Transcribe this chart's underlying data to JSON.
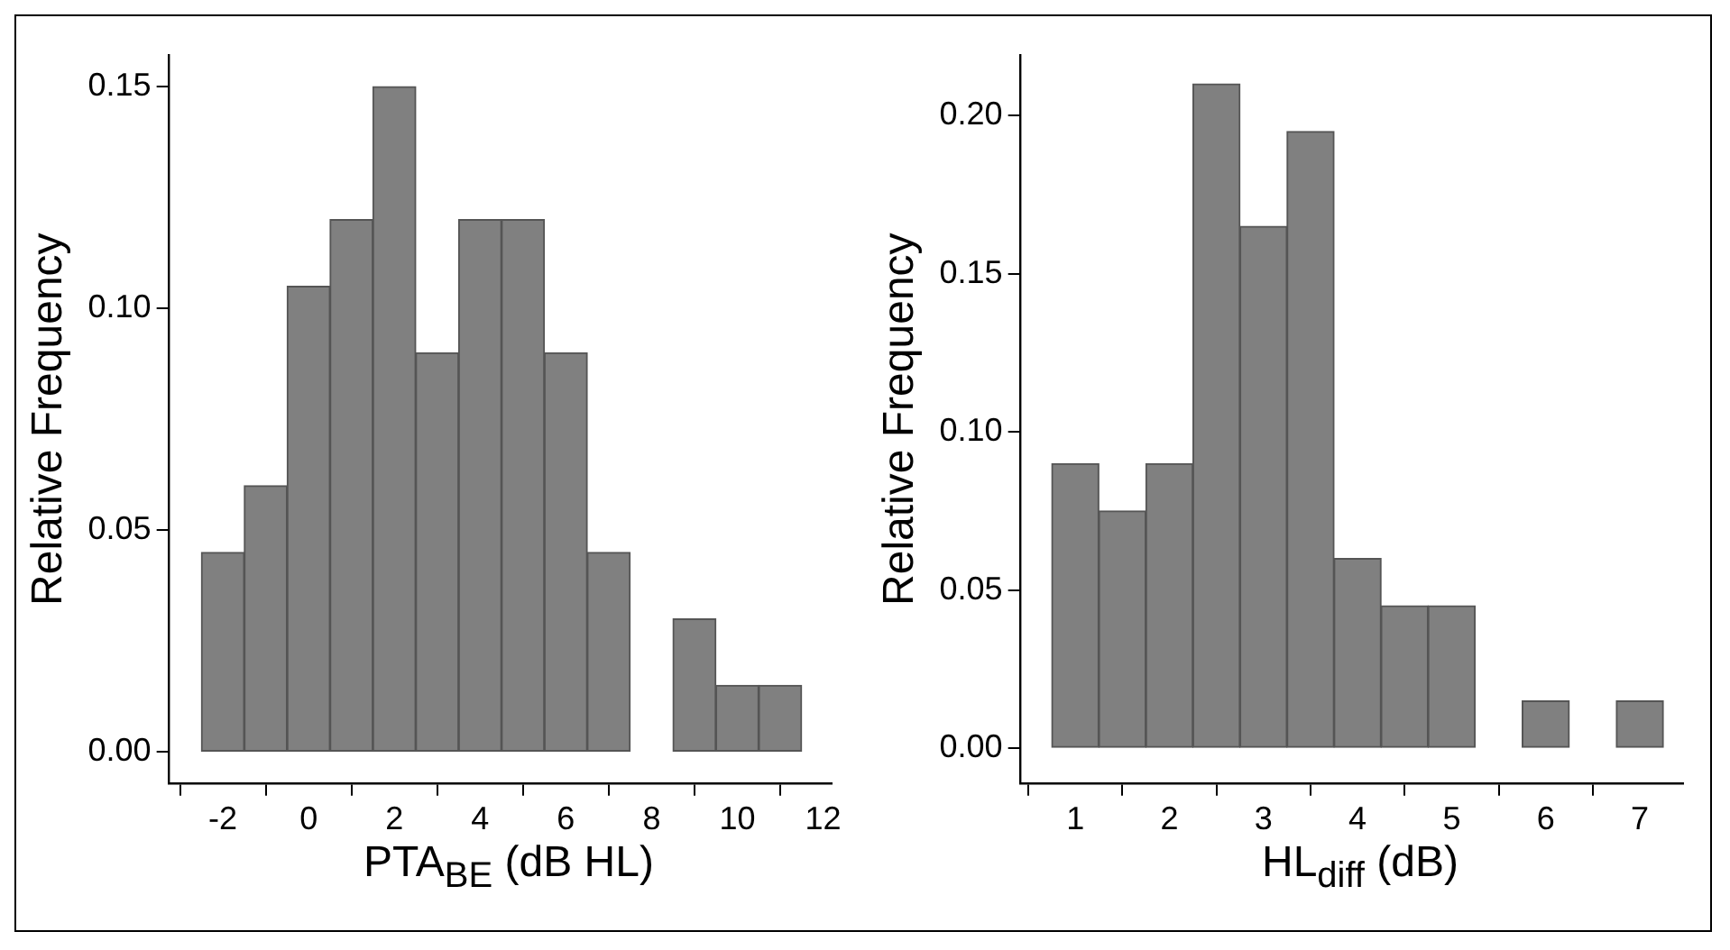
{
  "chart_data": [
    {
      "type": "histogram",
      "xlabel": "PTA$_{BE}$ (dB HL)",
      "ylabel": "Relative Frequency",
      "color": "#808080",
      "bins": [
        -2.5,
        -1.5,
        -0.5,
        0.5,
        1.5,
        2.5,
        3.5,
        4.5,
        5.5,
        6.5,
        7.5,
        8.5,
        9.5,
        10.5,
        11.5
      ],
      "values": [
        0.045,
        0.06,
        0.105,
        0.12,
        0.15,
        0.09,
        0.12,
        0.12,
        0.09,
        0.045,
        0,
        0.03,
        0.015,
        0.015
      ],
      "xlim": [
        -3.25,
        12.2
      ],
      "xticks": [
        -2,
        0,
        2,
        4,
        6,
        8,
        10,
        12
      ],
      "ylim": [
        -0.007,
        0.157
      ],
      "yticks": [
        {
          "value": 0,
          "label": "0.00"
        },
        {
          "value": 0.05,
          "label": "0.05"
        },
        {
          "value": 0.1,
          "label": "0.10"
        },
        {
          "value": 0.15,
          "label": "0.15"
        }
      ]
    },
    {
      "type": "histogram",
      "xlabel": "HL$_{diff}$ (dB)",
      "ylabel": "Relative Frequency",
      "color": "#808080",
      "bins": [
        0.75,
        1.25,
        1.75,
        2.25,
        2.75,
        3.25,
        3.75,
        4.25,
        4.75,
        5.25,
        5.75,
        6.25,
        6.75,
        7.25
      ],
      "values": [
        0.09,
        0.075,
        0.09,
        0.21,
        0.165,
        0.195,
        0.06,
        0.045,
        0.045,
        0,
        0.015,
        0,
        0.015
      ],
      "xlim": [
        0.42,
        7.46
      ],
      "xticks": [
        1,
        2,
        3,
        4,
        5,
        6,
        7
      ],
      "ylim": [
        -0.011,
        0.219
      ],
      "yticks": [
        {
          "value": 0,
          "label": "0.00"
        },
        {
          "value": 0.05,
          "label": "0.05"
        },
        {
          "value": 0.1,
          "label": "0.10"
        },
        {
          "value": 0.15,
          "label": "0.15"
        },
        {
          "value": 0.2,
          "label": "0.20"
        }
      ]
    }
  ]
}
